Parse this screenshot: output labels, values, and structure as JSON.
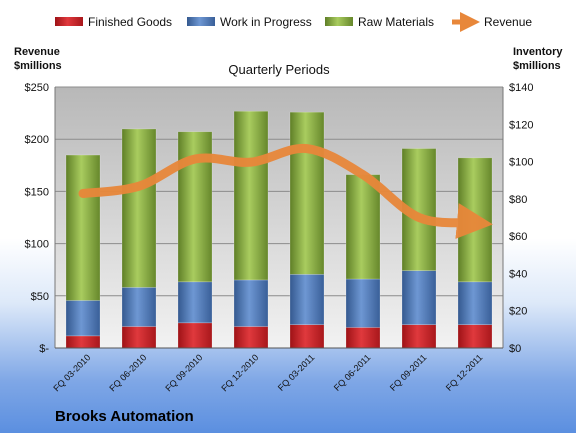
{
  "chart_data": {
    "type": "bar",
    "subtitle": "Quarterly Periods",
    "company": "Brooks Automation",
    "y_left_label": [
      "Revenue",
      "$millions"
    ],
    "y_right_label": [
      "Inventory",
      "$millions"
    ],
    "y_left_ticks": [
      "$-",
      "$50",
      "$100",
      "$150",
      "$200",
      "$250"
    ],
    "y_left_range": [
      0,
      250
    ],
    "y_right_ticks": [
      "$0",
      "$20",
      "$40",
      "$60",
      "$80",
      "$100",
      "$120",
      "$140"
    ],
    "y_right_range": [
      0,
      140
    ],
    "categories": [
      "FQ 03-2010",
      "FQ 06-2010",
      "FQ 09-2010",
      "FQ 12-2010",
      "FQ 03-2011",
      "FQ 06-2011",
      "FQ 09-2011",
      "FQ 12-2011"
    ],
    "series": [
      {
        "name": "Finished Goods",
        "color": "#d21f24",
        "axis": "right",
        "stacked": true,
        "values": [
          6.5,
          11.5,
          13.5,
          11.5,
          12.5,
          11,
          12.5,
          12.5
        ]
      },
      {
        "name": "Work in Progress",
        "color": "#4f7dc0",
        "axis": "right",
        "stacked": true,
        "values": [
          19,
          21,
          22,
          25,
          27,
          26,
          29,
          23
        ]
      },
      {
        "name": "Raw Materials",
        "color": "#8fb445",
        "axis": "right",
        "stacked": true,
        "values": [
          78,
          85,
          80.5,
          90.5,
          87,
          56,
          65.5,
          66.5
        ]
      },
      {
        "name": "Revenue",
        "color": "#e8873a",
        "axis": "left",
        "type": "line",
        "values": [
          148,
          155,
          181,
          178,
          191,
          166,
          125,
          120
        ]
      }
    ],
    "grid": true,
    "legend_position": "top"
  }
}
